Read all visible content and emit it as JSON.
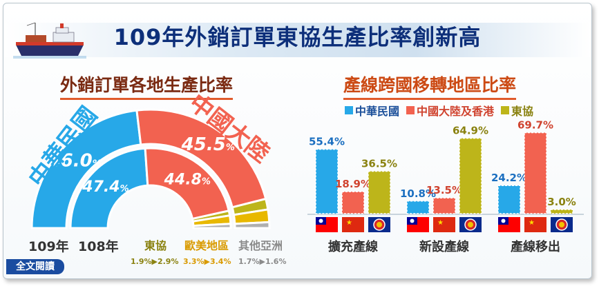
{
  "title": "109年外銷訂單東協生產比率創新高",
  "left_subtitle": "外銷訂單各地生產比率",
  "right_subtitle": "產線跨國移轉地區比率",
  "colors": {
    "taiwan": "#27a8e8",
    "china": "#f26250",
    "asean": "#bdb51a",
    "other_gold": "#e8b800",
    "other_gray": "#b0b0b0"
  },
  "cta_label": "全文閱讀",
  "chart_data": [
    {
      "type": "donut",
      "name": "外銷訂單各地生產比率",
      "rings": [
        "109年",
        "108年"
      ],
      "segments": [
        {
          "name": "中華民國",
          "values": [
            46.0,
            47.4
          ],
          "labels": [
            "46.0",
            "47.4"
          ]
        },
        {
          "name": "中國大陸",
          "values": [
            45.5,
            44.8
          ],
          "labels": [
            "45.5",
            "44.8"
          ]
        },
        {
          "name": "東協",
          "values": [
            2.9,
            1.9
          ],
          "change": "1.9%▶2.9%"
        },
        {
          "name": "歐美地區",
          "values": [
            3.4,
            3.3
          ],
          "change": "3.3%▶3.4%"
        },
        {
          "name": "其他亞洲",
          "values": [
            1.6,
            1.7
          ],
          "change": "1.7%▶1.6%"
        }
      ],
      "year_labels": {
        "outer": "109年",
        "inner": "108年"
      },
      "unit": "%"
    },
    {
      "type": "bar",
      "name": "產線跨國移轉地區比率",
      "categories": [
        "擴充產線",
        "新設產線",
        "產線移出"
      ],
      "series": [
        {
          "name": "中華民國",
          "values": [
            55.4,
            10.8,
            24.2
          ],
          "labels": [
            "55.4%",
            "10.8%",
            "24.2%"
          ]
        },
        {
          "name": "中國大陸及香港",
          "values": [
            18.9,
            13.5,
            69.7
          ],
          "labels": [
            "18.9%",
            "13.5%",
            "69.7%"
          ]
        },
        {
          "name": "東協",
          "values": [
            36.5,
            64.9,
            3.0
          ],
          "labels": [
            "36.5%",
            "64.9%",
            "3.0%"
          ]
        }
      ],
      "ylim": [
        0,
        75
      ]
    }
  ]
}
